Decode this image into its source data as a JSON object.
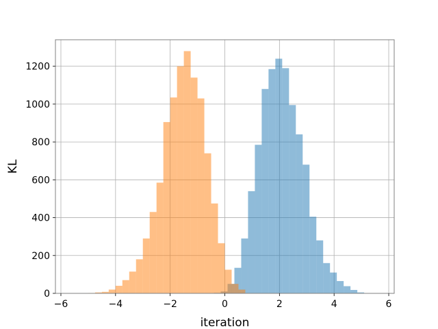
{
  "chart_data": {
    "type": "bar",
    "subtype": "overlaid-histogram",
    "title": "",
    "xlabel": "iteration",
    "ylabel": "KL",
    "xlim": [
      -6.2,
      6.2
    ],
    "ylim": [
      0,
      1340
    ],
    "xticks": [
      -6,
      -4,
      -2,
      0,
      2,
      4,
      6
    ],
    "xtick_labels": [
      "−6",
      "−4",
      "−2",
      "0",
      "2",
      "4",
      "6"
    ],
    "yticks": [
      0,
      200,
      400,
      600,
      800,
      1000,
      1200
    ],
    "ytick_labels": [
      "0",
      "200",
      "400",
      "600",
      "800",
      "1000",
      "1200"
    ],
    "grid": true,
    "legend": "none",
    "series": [
      {
        "color": "#1f77b4",
        "opacity": 0.5,
        "bins": [
          {
            "x0": -0.4,
            "x1": -0.15,
            "value": 3
          },
          {
            "x0": -0.15,
            "x1": 0.1,
            "value": 10
          },
          {
            "x0": 0.1,
            "x1": 0.35,
            "value": 50
          },
          {
            "x0": 0.35,
            "x1": 0.6,
            "value": 135
          },
          {
            "x0": 0.6,
            "x1": 0.85,
            "value": 290
          },
          {
            "x0": 0.85,
            "x1": 1.1,
            "value": 540
          },
          {
            "x0": 1.1,
            "x1": 1.35,
            "value": 785
          },
          {
            "x0": 1.35,
            "x1": 1.6,
            "value": 1080
          },
          {
            "x0": 1.6,
            "x1": 1.85,
            "value": 1185
          },
          {
            "x0": 1.85,
            "x1": 2.1,
            "value": 1240
          },
          {
            "x0": 2.1,
            "x1": 2.35,
            "value": 1190
          },
          {
            "x0": 2.35,
            "x1": 2.6,
            "value": 995
          },
          {
            "x0": 2.6,
            "x1": 2.85,
            "value": 840
          },
          {
            "x0": 2.85,
            "x1": 3.1,
            "value": 680
          },
          {
            "x0": 3.1,
            "x1": 3.35,
            "value": 405
          },
          {
            "x0": 3.35,
            "x1": 3.6,
            "value": 280
          },
          {
            "x0": 3.6,
            "x1": 3.85,
            "value": 160
          },
          {
            "x0": 3.85,
            "x1": 4.1,
            "value": 110
          },
          {
            "x0": 4.1,
            "x1": 4.35,
            "value": 65
          },
          {
            "x0": 4.35,
            "x1": 4.6,
            "value": 38
          },
          {
            "x0": 4.6,
            "x1": 4.85,
            "value": 18
          },
          {
            "x0": 4.85,
            "x1": 5.1,
            "value": 5
          }
        ]
      },
      {
        "color": "#ff7f0e",
        "opacity": 0.5,
        "bins": [
          {
            "x0": -5.0,
            "x1": -4.75,
            "value": 2
          },
          {
            "x0": -4.75,
            "x1": -4.5,
            "value": 5
          },
          {
            "x0": -4.5,
            "x1": -4.25,
            "value": 8
          },
          {
            "x0": -4.25,
            "x1": -4.0,
            "value": 20
          },
          {
            "x0": -4.0,
            "x1": -3.75,
            "value": 40
          },
          {
            "x0": -3.75,
            "x1": -3.5,
            "value": 70
          },
          {
            "x0": -3.5,
            "x1": -3.25,
            "value": 115
          },
          {
            "x0": -3.25,
            "x1": -3.0,
            "value": 180
          },
          {
            "x0": -3.0,
            "x1": -2.75,
            "value": 290
          },
          {
            "x0": -2.75,
            "x1": -2.5,
            "value": 430
          },
          {
            "x0": -2.5,
            "x1": -2.25,
            "value": 585
          },
          {
            "x0": -2.25,
            "x1": -2.0,
            "value": 905
          },
          {
            "x0": -2.0,
            "x1": -1.75,
            "value": 1035
          },
          {
            "x0": -1.75,
            "x1": -1.5,
            "value": 1200
          },
          {
            "x0": -1.5,
            "x1": -1.25,
            "value": 1280
          },
          {
            "x0": -1.25,
            "x1": -1.0,
            "value": 1140
          },
          {
            "x0": -1.0,
            "x1": -0.75,
            "value": 1030
          },
          {
            "x0": -0.75,
            "x1": -0.5,
            "value": 740
          },
          {
            "x0": -0.5,
            "x1": -0.25,
            "value": 475
          },
          {
            "x0": -0.25,
            "x1": 0.0,
            "value": 265
          },
          {
            "x0": 0.0,
            "x1": 0.25,
            "value": 125
          },
          {
            "x0": 0.25,
            "x1": 0.5,
            "value": 50
          },
          {
            "x0": 0.5,
            "x1": 0.75,
            "value": 20
          }
        ]
      }
    ]
  }
}
